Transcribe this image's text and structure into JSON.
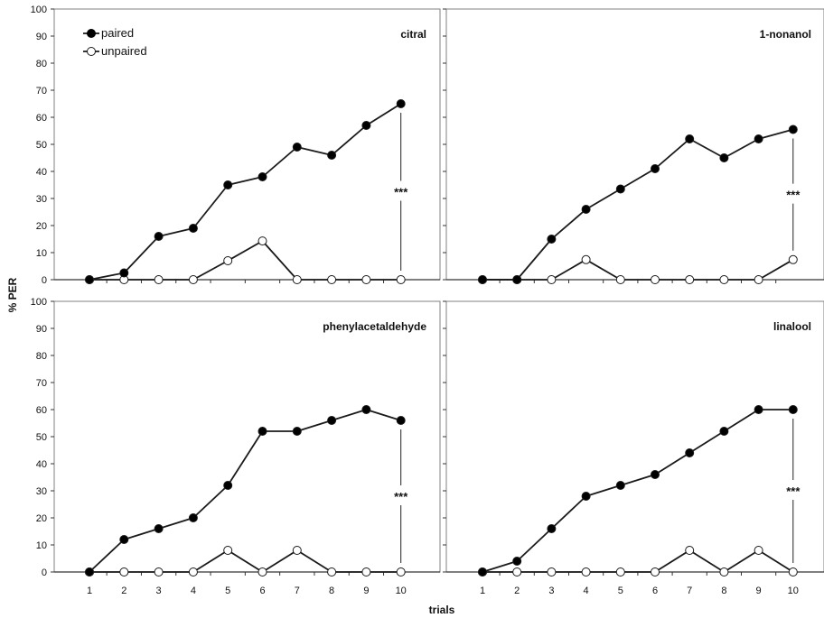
{
  "figure": {
    "ylabel": "% PER",
    "xlabel": "trials",
    "legend": {
      "paired": "paired",
      "unpaired": "unpaired",
      "placement": "top-left of first panel"
    },
    "colors": {
      "paired": "#000000",
      "unpaired": "#ffffff",
      "line": "#1a1a1a",
      "frame": "#808080"
    }
  },
  "chart_data": [
    {
      "type": "line",
      "title": "citral",
      "x": [
        1,
        2,
        3,
        4,
        5,
        6,
        7,
        8,
        9,
        10
      ],
      "ylim": [
        0,
        100
      ],
      "yticks": [
        0,
        10,
        20,
        30,
        40,
        50,
        60,
        70,
        80,
        90,
        100
      ],
      "series": [
        {
          "name": "paired",
          "values": [
            0,
            2.5,
            16,
            19,
            35,
            38,
            49,
            46,
            57,
            65
          ]
        },
        {
          "name": "unpaired",
          "values": [
            0,
            0,
            0,
            0,
            7,
            14.3,
            0,
            0,
            0,
            0
          ]
        }
      ],
      "annotation": {
        "text": "***",
        "x": 10
      }
    },
    {
      "type": "line",
      "title": "1-nonanol",
      "x": [
        1,
        2,
        3,
        4,
        5,
        6,
        7,
        8,
        9,
        10
      ],
      "ylim": [
        0,
        100
      ],
      "series": [
        {
          "name": "paired",
          "values": [
            0,
            0,
            15,
            26,
            33.5,
            41,
            52,
            45,
            52,
            55.5
          ]
        },
        {
          "name": "unpaired",
          "values": [
            0,
            0,
            0,
            7.4,
            0,
            0,
            0,
            0,
            0,
            7.4
          ]
        }
      ],
      "annotation": {
        "text": "***",
        "x": 10
      }
    },
    {
      "type": "line",
      "title": "phenylacetaldehyde",
      "x": [
        1,
        2,
        3,
        4,
        5,
        6,
        7,
        8,
        9,
        10
      ],
      "ylim": [
        0,
        100
      ],
      "yticks": [
        0,
        10,
        20,
        30,
        40,
        50,
        60,
        70,
        80,
        90,
        100
      ],
      "series": [
        {
          "name": "paired",
          "values": [
            0,
            12,
            16,
            20,
            32,
            52,
            52,
            56,
            60,
            56
          ]
        },
        {
          "name": "unpaired",
          "values": [
            0,
            0,
            0,
            0,
            8,
            0,
            8,
            0,
            0,
            0
          ]
        }
      ],
      "annotation": {
        "text": "***",
        "x": 10
      }
    },
    {
      "type": "line",
      "title": "linalool",
      "x": [
        1,
        2,
        3,
        4,
        5,
        6,
        7,
        8,
        9,
        10
      ],
      "ylim": [
        0,
        100
      ],
      "series": [
        {
          "name": "paired",
          "values": [
            0,
            4,
            16,
            28,
            32,
            36,
            44,
            52,
            60,
            60
          ]
        },
        {
          "name": "unpaired",
          "values": [
            0,
            0,
            0,
            0,
            0,
            0,
            8,
            0,
            8,
            0
          ]
        }
      ],
      "annotation": {
        "text": "***",
        "x": 10
      }
    }
  ]
}
